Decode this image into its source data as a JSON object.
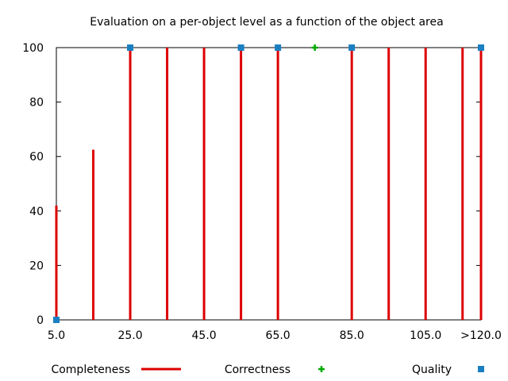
{
  "chart_data": {
    "type": "bar",
    "title": "Evaluation on a per-object level as a function of the object area",
    "xlabel": "",
    "ylabel": "",
    "x_tick_labels": [
      "5.0",
      "25.0",
      "45.0",
      "65.0",
      "85.0",
      "105.0",
      ">120.0"
    ],
    "x_tick_values": [
      5,
      25,
      45,
      65,
      85,
      105,
      120
    ],
    "xlim": [
      5,
      120
    ],
    "ylim": [
      0,
      100
    ],
    "y_ticks": [
      0,
      20,
      40,
      60,
      80,
      100
    ],
    "grid": false,
    "legend_position": "bottom",
    "series": [
      {
        "name": "Completeness",
        "style": "impulses",
        "color": "#dd0000",
        "points": [
          {
            "x": 5,
            "y": 42
          },
          {
            "x": 15,
            "y": 62.5
          },
          {
            "x": 25,
            "y": 100
          },
          {
            "x": 35,
            "y": 100
          },
          {
            "x": 45,
            "y": 100
          },
          {
            "x": 55,
            "y": 100
          },
          {
            "x": 65,
            "y": 100
          },
          {
            "x": 85,
            "y": 100
          },
          {
            "x": 95,
            "y": 100
          },
          {
            "x": 105,
            "y": 100
          },
          {
            "x": 115,
            "y": 100
          },
          {
            "x": 120,
            "y": 100
          }
        ]
      },
      {
        "name": "Correctness",
        "style": "points-plus",
        "color": "#00aa00",
        "points": [
          {
            "x": 75,
            "y": 100
          }
        ]
      },
      {
        "name": "Quality",
        "style": "points-square",
        "color": "#1a7fc1",
        "points": [
          {
            "x": 5,
            "y": 0
          },
          {
            "x": 25,
            "y": 100
          },
          {
            "x": 55,
            "y": 100
          },
          {
            "x": 65,
            "y": 100
          },
          {
            "x": 85,
            "y": 100
          },
          {
            "x": 120,
            "y": 100
          }
        ]
      }
    ]
  }
}
